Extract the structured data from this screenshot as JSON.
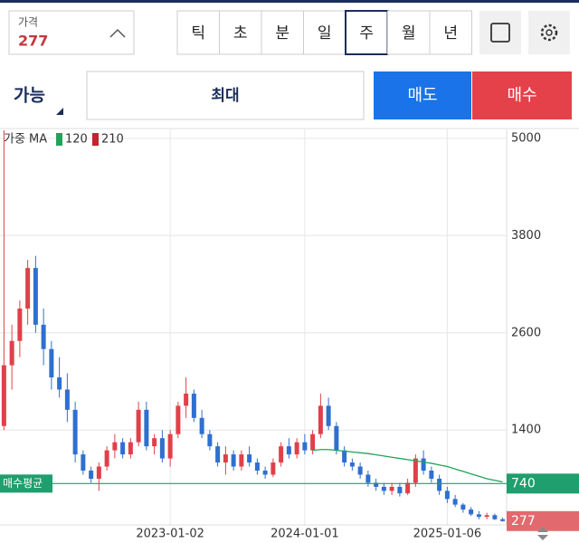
{
  "header": {
    "price": {
      "label": "가격",
      "value": 277
    },
    "periods": [
      "틱",
      "초",
      "분",
      "일",
      "주",
      "월",
      "년"
    ],
    "selected_period": "주"
  },
  "order": {
    "mode": "가능",
    "quantity": "최대",
    "sell": "매도",
    "buy": "매수"
  },
  "chart_data": {
    "type": "candlestick",
    "legend": {
      "title": "가중 MA",
      "items": [
        {
          "name": "120",
          "color": "#22a35a"
        },
        {
          "name": "210",
          "color": "#c0262d"
        }
      ]
    },
    "categories": [
      null,
      null,
      null,
      null,
      null,
      null,
      null,
      null,
      null,
      null,
      null,
      null,
      null,
      null,
      null,
      null,
      null,
      null,
      null,
      null,
      null,
      "2023-01-02",
      null,
      null,
      null,
      null,
      null,
      null,
      null,
      null,
      null,
      null,
      null,
      null,
      null,
      null,
      null,
      null,
      "2024-01-01",
      null,
      null,
      null,
      null,
      null,
      null,
      null,
      null,
      null,
      null,
      null,
      null,
      null,
      null,
      null,
      null,
      null,
      "2025-01-06",
      null,
      null,
      null,
      null,
      null,
      null,
      null
    ],
    "open": [
      1450,
      2200,
      2500,
      2900,
      3400,
      2700,
      2400,
      2050,
      1900,
      1650,
      1100,
      900,
      800,
      950,
      1150,
      1250,
      1100,
      1250,
      1650,
      1200,
      1300,
      1050,
      1350,
      1700,
      1850,
      1550,
      1350,
      1200,
      1000,
      1100,
      950,
      1100,
      1000,
      900,
      850,
      1000,
      1200,
      1100,
      1250,
      1150,
      1350,
      1700,
      1450,
      1150,
      1000,
      950,
      850,
      750,
      700,
      650,
      700,
      620,
      750,
      1050,
      900,
      800,
      650,
      550,
      480,
      420,
      360,
      330,
      350,
      300
    ],
    "high": [
      5100,
      2700,
      3000,
      3500,
      3550,
      2900,
      2500,
      2300,
      2100,
      1750,
      1150,
      950,
      1000,
      1200,
      1350,
      1300,
      1300,
      1750,
      1750,
      1350,
      1400,
      1400,
      1750,
      2050,
      1900,
      1650,
      1400,
      1250,
      1200,
      1150,
      1150,
      1200,
      1050,
      950,
      1050,
      1250,
      1300,
      1300,
      1350,
      1400,
      1850,
      1800,
      1500,
      1200,
      1050,
      1000,
      900,
      800,
      750,
      750,
      750,
      800,
      1100,
      1150,
      950,
      850,
      700,
      600,
      500,
      450,
      400,
      380,
      370,
      320
    ],
    "low": [
      1400,
      1900,
      2300,
      2700,
      2600,
      2200,
      1900,
      1800,
      1500,
      1000,
      850,
      750,
      650,
      900,
      1050,
      1050,
      1050,
      1200,
      1150,
      1100,
      1000,
      950,
      1300,
      1550,
      1500,
      1300,
      1150,
      950,
      850,
      900,
      900,
      950,
      850,
      800,
      820,
      950,
      1050,
      1050,
      1100,
      1100,
      1300,
      1400,
      1100,
      950,
      900,
      800,
      700,
      650,
      600,
      600,
      580,
      600,
      700,
      850,
      750,
      600,
      500,
      450,
      380,
      340,
      300,
      300,
      290,
      270
    ],
    "close": [
      2200,
      2500,
      2900,
      3400,
      2700,
      2400,
      2050,
      1900,
      1650,
      1100,
      900,
      800,
      950,
      1150,
      1250,
      1100,
      1250,
      1650,
      1200,
      1300,
      1050,
      1350,
      1700,
      1850,
      1550,
      1350,
      1200,
      1000,
      1100,
      950,
      1100,
      1000,
      900,
      850,
      1000,
      1200,
      1100,
      1250,
      1150,
      1350,
      1700,
      1450,
      1150,
      1000,
      950,
      850,
      750,
      700,
      650,
      700,
      620,
      750,
      1050,
      900,
      800,
      650,
      550,
      480,
      420,
      360,
      330,
      350,
      300,
      277
    ],
    "ma": {
      "name": "120",
      "color": "#22a35a",
      "values": [
        null,
        null,
        null,
        null,
        null,
        null,
        null,
        null,
        null,
        null,
        null,
        null,
        null,
        null,
        null,
        null,
        null,
        null,
        null,
        null,
        null,
        null,
        null,
        null,
        null,
        null,
        null,
        null,
        null,
        null,
        null,
        null,
        null,
        null,
        null,
        null,
        null,
        null,
        null,
        1150,
        1160,
        1160,
        1150,
        1140,
        1130,
        1120,
        1110,
        1095,
        1080,
        1065,
        1050,
        1035,
        1020,
        1005,
        990,
        970,
        950,
        920,
        890,
        860,
        830,
        800,
        780,
        760
      ]
    },
    "up_color": "#e0404a",
    "down_color": "#2f6fd0",
    "avg_line": {
      "label": "매수평균",
      "value": 740,
      "color": "#1f9e6e"
    },
    "current_price": {
      "value": 277,
      "color": "#e26a6e"
    },
    "ylim": [
      230,
      5110
    ],
    "yticks": [
      1400,
      2600,
      3800,
      5000
    ],
    "grid": true
  }
}
